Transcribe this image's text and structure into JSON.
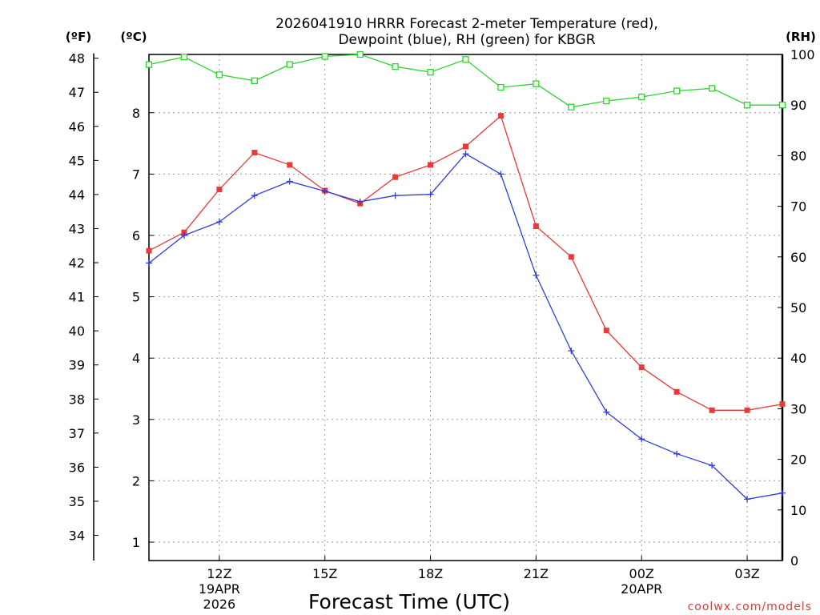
{
  "chart_data": {
    "type": "line",
    "title": "2026041910 HRRR Forecast 2-meter Temperature (red),",
    "subtitle": "Dewpoint (blue), RH (green) for KBGR",
    "xlabel": "Forecast Time (UTC)",
    "credit": "coolwx.com/models",
    "units": {
      "fahrenheit": "(ºF)",
      "celsius": "(ºC)",
      "rh": "(RH)"
    },
    "x_hours": [
      10,
      11,
      12,
      13,
      14,
      15,
      16,
      17,
      18,
      19,
      20,
      21,
      22,
      23,
      24,
      25,
      26,
      27,
      28
    ],
    "x_range": [
      10,
      28
    ],
    "x_ticks": [
      {
        "hour": 12,
        "label": "12Z",
        "sub1": "19APR",
        "sub2": "2026"
      },
      {
        "hour": 15,
        "label": "15Z"
      },
      {
        "hour": 18,
        "label": "18Z"
      },
      {
        "hour": 21,
        "label": "21Z"
      },
      {
        "hour": 24,
        "label": "00Z",
        "sub1": "20APR"
      },
      {
        "hour": 27,
        "label": "03Z"
      }
    ],
    "celsius_range": [
      0.7,
      8.95
    ],
    "celsius_ticks": [
      "1",
      "2",
      "3",
      "4",
      "5",
      "6",
      "7",
      "8"
    ],
    "fahrenheit_ticks": [
      "34",
      "35",
      "36",
      "37",
      "38",
      "39",
      "40",
      "41",
      "42",
      "43",
      "44",
      "45",
      "46",
      "47",
      "48"
    ],
    "rh_range": [
      0,
      100
    ],
    "rh_ticks": [
      "0",
      "10",
      "20",
      "30",
      "40",
      "50",
      "60",
      "70",
      "80",
      "90",
      "100"
    ],
    "series": [
      {
        "name": "Temperature",
        "axis": "celsius",
        "color": "#e83a3a",
        "marker": "filled-square",
        "values": [
          5.75,
          6.05,
          6.75,
          7.35,
          7.15,
          6.73,
          6.52,
          6.95,
          7.15,
          7.45,
          7.95,
          6.15,
          5.65,
          4.45,
          3.85,
          3.45,
          3.15,
          3.15,
          3.25
        ]
      },
      {
        "name": "Dewpoint",
        "axis": "celsius",
        "color": "#2f3de0",
        "marker": "plus",
        "values": [
          5.55,
          6.0,
          6.22,
          6.65,
          6.88,
          6.72,
          6.55,
          6.65,
          6.67,
          7.33,
          7.0,
          5.35,
          4.12,
          3.12,
          2.68,
          2.44,
          2.25,
          1.7,
          1.8
        ]
      },
      {
        "name": "RH",
        "axis": "rh",
        "color": "#2bd62b",
        "marker": "open-square",
        "values": [
          98,
          99.5,
          96,
          94.8,
          98,
          99.6,
          100,
          97.6,
          96.5,
          99,
          93.5,
          94.2,
          89.6,
          90.8,
          91.6,
          92.8,
          93.3,
          90,
          90
        ]
      }
    ]
  }
}
